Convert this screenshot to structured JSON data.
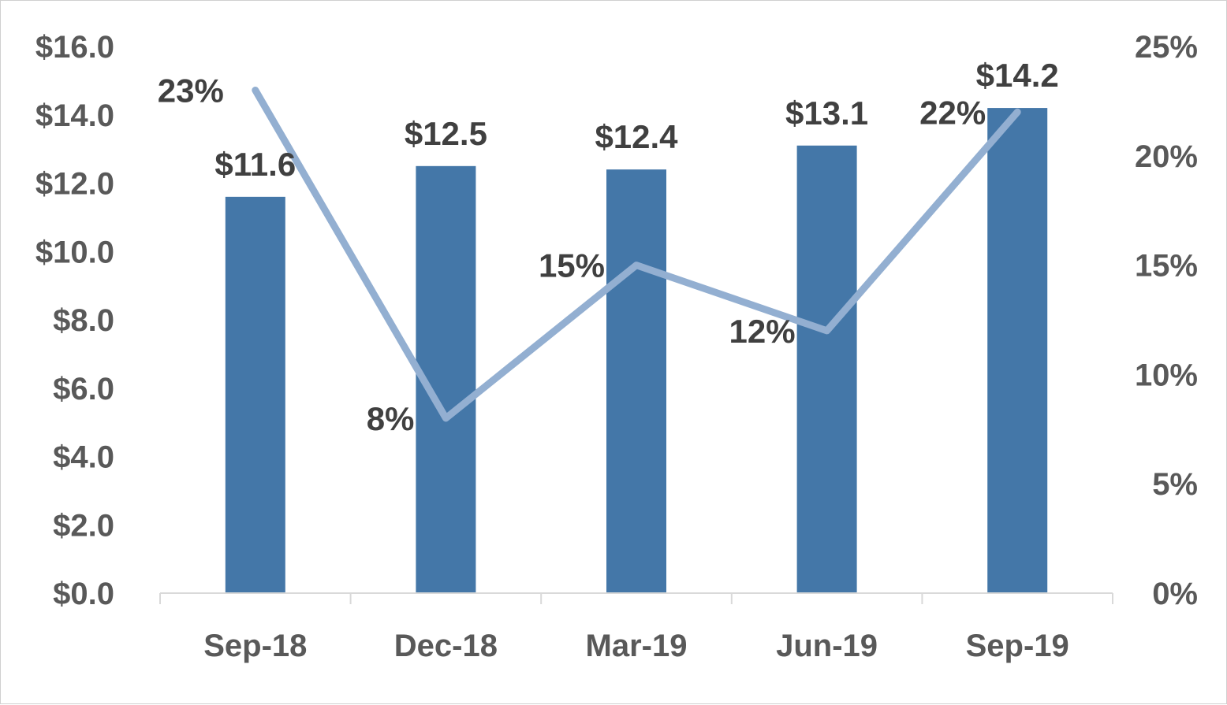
{
  "chart_data": {
    "type": "bar",
    "categories": [
      "Sep-18",
      "Dec-18",
      "Mar-19",
      "Jun-19",
      "Sep-19"
    ],
    "series": [
      {
        "type": "bar",
        "axis": "left",
        "values": [
          11.6,
          12.5,
          12.4,
          13.1,
          14.2
        ],
        "data_labels": [
          "$11.6",
          "$12.5",
          "$12.4",
          "$13.1",
          "$14.2"
        ],
        "color": "#4477a8"
      },
      {
        "type": "line",
        "axis": "right",
        "values": [
          23,
          8,
          15,
          12,
          22
        ],
        "data_labels": [
          "23%",
          "8%",
          "15%",
          "12%",
          "22%"
        ],
        "color": "#93afd1"
      }
    ],
    "y_left": {
      "range": [
        0,
        16
      ],
      "ticks": [
        0,
        2,
        4,
        6,
        8,
        10,
        12,
        14,
        16
      ],
      "tick_labels": [
        "$0.0",
        "$2.0",
        "$4.0",
        "$6.0",
        "$8.0",
        "$10.0",
        "$12.0",
        "$14.0",
        "$16.0"
      ]
    },
    "y_right": {
      "range": [
        0,
        25
      ],
      "ticks": [
        0,
        5,
        10,
        15,
        20,
        25
      ],
      "tick_labels": [
        "0%",
        "5%",
        "10%",
        "15%",
        "20%",
        "25%"
      ]
    },
    "title": "",
    "xlabel": "",
    "ylabel": "",
    "grid": false,
    "legend": "none",
    "axis_color": "#d9d9d9",
    "tick_color": "#595959",
    "label_color": "#404040"
  }
}
